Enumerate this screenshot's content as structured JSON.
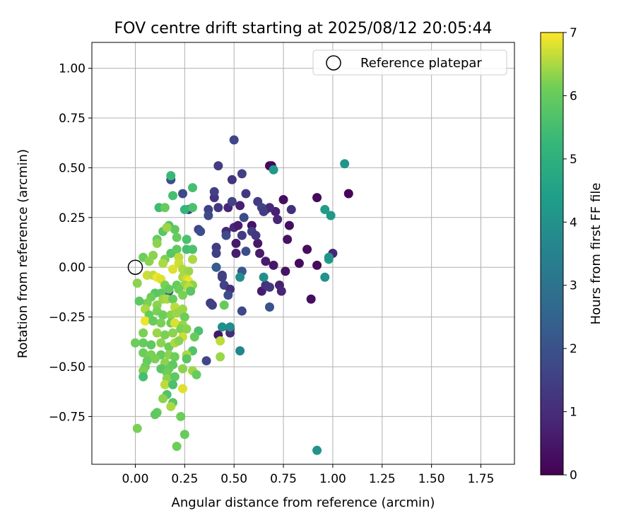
{
  "chart_data": {
    "type": "scatter",
    "title": "FOV centre drift starting at 2025/08/12 20:05:44",
    "xlabel": "Angular distance from reference (arcmin)",
    "ylabel": "Rotation from reference (arcmin)",
    "xlim": [
      -0.22,
      1.92
    ],
    "ylim": [
      -0.99,
      1.13
    ],
    "xticks": [
      0.0,
      0.25,
      0.5,
      0.75,
      1.0,
      1.25,
      1.5,
      1.75
    ],
    "xtick_labels": [
      "0.00",
      "0.25",
      "0.50",
      "0.75",
      "1.00",
      "1.25",
      "1.50",
      "1.75"
    ],
    "yticks": [
      1.0,
      0.75,
      0.5,
      0.25,
      0.0,
      -0.25,
      -0.5,
      -0.75
    ],
    "ytick_labels": [
      "1.00",
      "0.75",
      "0.50",
      "0.25",
      "0.00",
      "−0.25",
      "−0.50",
      "−0.75"
    ],
    "grid": true,
    "legend": {
      "placement": "top-right",
      "entries": [
        "Reference platepar"
      ]
    },
    "colormap": "viridis",
    "colorbar": {
      "label": "Hours from first FF file",
      "min": 0,
      "max": 7,
      "ticks": [
        0,
        1,
        2,
        3,
        4,
        5,
        6,
        7
      ],
      "tick_labels": [
        "0",
        "1",
        "2",
        "3",
        "4",
        "5",
        "6",
        "7"
      ]
    },
    "reference_point": {
      "x": 0.0,
      "y": 0.0
    },
    "points": [
      {
        "x": 0.69,
        "y": 0.51,
        "h": 0.1
      },
      {
        "x": 0.68,
        "y": 0.51,
        "h": 0.2
      },
      {
        "x": 0.92,
        "y": 0.35,
        "h": 0.2
      },
      {
        "x": 1.08,
        "y": 0.37,
        "h": 0.1
      },
      {
        "x": 0.75,
        "y": 0.34,
        "h": 0.3
      },
      {
        "x": 0.59,
        "y": 0.21,
        "h": 0.4
      },
      {
        "x": 0.78,
        "y": 0.21,
        "h": 0.3
      },
      {
        "x": 0.77,
        "y": 0.14,
        "h": 0.4
      },
      {
        "x": 0.87,
        "y": 0.09,
        "h": 0.3
      },
      {
        "x": 0.62,
        "y": 0.12,
        "h": 0.5
      },
      {
        "x": 0.63,
        "y": 0.07,
        "h": 0.6
      },
      {
        "x": 0.66,
        "y": 0.03,
        "h": 0.6
      },
      {
        "x": 0.7,
        "y": 0.01,
        "h": 0.5
      },
      {
        "x": 0.76,
        "y": -0.02,
        "h": 0.4
      },
      {
        "x": 0.83,
        "y": 0.02,
        "h": 0.2
      },
      {
        "x": 0.92,
        "y": 0.01,
        "h": 0.2
      },
      {
        "x": 0.89,
        "y": -0.16,
        "h": 0.3
      },
      {
        "x": 0.73,
        "y": -0.09,
        "h": 0.7
      },
      {
        "x": 0.74,
        "y": -0.12,
        "h": 0.8
      },
      {
        "x": 0.64,
        "y": -0.12,
        "h": 0.6
      },
      {
        "x": 1.0,
        "y": 0.07,
        "h": 0.8
      },
      {
        "x": 0.66,
        "y": 0.29,
        "h": 0.8
      },
      {
        "x": 0.71,
        "y": 0.28,
        "h": 0.7
      },
      {
        "x": 0.72,
        "y": 0.24,
        "h": 0.8
      },
      {
        "x": 0.68,
        "y": 0.3,
        "h": 0.9
      },
      {
        "x": 0.79,
        "y": 0.29,
        "h": 1.1
      },
      {
        "x": 0.5,
        "y": 0.2,
        "h": 0.9
      },
      {
        "x": 0.52,
        "y": 0.21,
        "h": 0.6
      },
      {
        "x": 0.46,
        "y": 0.18,
        "h": 0.9
      },
      {
        "x": 0.47,
        "y": 0.3,
        "h": 0.8
      },
      {
        "x": 0.53,
        "y": 0.31,
        "h": 0.7
      },
      {
        "x": 0.51,
        "y": 0.12,
        "h": 0.5
      },
      {
        "x": 0.51,
        "y": 0.07,
        "h": 0.6
      },
      {
        "x": 0.42,
        "y": -0.34,
        "h": 0.5
      },
      {
        "x": 0.48,
        "y": -0.31,
        "h": 0.8
      },
      {
        "x": 0.48,
        "y": -0.33,
        "h": 1.0
      },
      {
        "x": 0.5,
        "y": 0.64,
        "h": 1.7
      },
      {
        "x": 0.42,
        "y": 0.51,
        "h": 1.4
      },
      {
        "x": 0.49,
        "y": 0.44,
        "h": 1.2
      },
      {
        "x": 0.54,
        "y": 0.47,
        "h": 1.5
      },
      {
        "x": 0.56,
        "y": 0.37,
        "h": 1.3
      },
      {
        "x": 0.4,
        "y": 0.35,
        "h": 1.2
      },
      {
        "x": 0.4,
        "y": 0.38,
        "h": 1.5
      },
      {
        "x": 0.62,
        "y": 0.33,
        "h": 1.4
      },
      {
        "x": 0.64,
        "y": 0.3,
        "h": 1.6
      },
      {
        "x": 0.65,
        "y": 0.28,
        "h": 1.4
      },
      {
        "x": 0.55,
        "y": 0.25,
        "h": 1.8
      },
      {
        "x": 0.32,
        "y": 0.19,
        "h": 1.6
      },
      {
        "x": 0.37,
        "y": 0.29,
        "h": 1.5
      },
      {
        "x": 0.37,
        "y": 0.26,
        "h": 1.8
      },
      {
        "x": 0.42,
        "y": 0.3,
        "h": 1.3
      },
      {
        "x": 0.49,
        "y": 0.33,
        "h": 1.6
      },
      {
        "x": 0.59,
        "y": 0.18,
        "h": 1.5
      },
      {
        "x": 0.61,
        "y": 0.16,
        "h": 1.3
      },
      {
        "x": 0.54,
        "y": 0.16,
        "h": 1.4
      },
      {
        "x": 0.46,
        "y": 0.16,
        "h": 1.8
      },
      {
        "x": 0.33,
        "y": 0.18,
        "h": 1.9
      },
      {
        "x": 0.41,
        "y": 0.1,
        "h": 1.4
      },
      {
        "x": 0.41,
        "y": 0.07,
        "h": 1.5
      },
      {
        "x": 0.56,
        "y": 0.08,
        "h": 1.9
      },
      {
        "x": 0.41,
        "y": 0.0,
        "h": 2.1
      },
      {
        "x": 0.44,
        "y": -0.04,
        "h": 1.4
      },
      {
        "x": 0.44,
        "y": -0.05,
        "h": 1.5
      },
      {
        "x": 0.45,
        "y": -0.09,
        "h": 1.6
      },
      {
        "x": 0.48,
        "y": -0.11,
        "h": 1.1
      },
      {
        "x": 0.47,
        "y": -0.14,
        "h": 1.8
      },
      {
        "x": 0.38,
        "y": -0.18,
        "h": 1.4
      },
      {
        "x": 0.39,
        "y": -0.19,
        "h": 1.5
      },
      {
        "x": 0.54,
        "y": -0.22,
        "h": 1.7
      },
      {
        "x": 0.66,
        "y": -0.09,
        "h": 1.2
      },
      {
        "x": 0.68,
        "y": -0.1,
        "h": 1.3
      },
      {
        "x": 0.68,
        "y": -0.2,
        "h": 2.0
      },
      {
        "x": 0.36,
        "y": -0.47,
        "h": 1.7
      },
      {
        "x": 0.18,
        "y": 0.44,
        "h": 1.9
      },
      {
        "x": 0.24,
        "y": 0.37,
        "h": 1.8
      },
      {
        "x": 0.27,
        "y": 0.29,
        "h": 1.6
      },
      {
        "x": 0.17,
        "y": -0.12,
        "h": 1.9
      },
      {
        "x": 0.41,
        "y": 0.0,
        "h": 2.3
      },
      {
        "x": 0.54,
        "y": -0.02,
        "h": 2.2
      },
      {
        "x": 0.7,
        "y": 0.49,
        "h": 4.2
      },
      {
        "x": 1.06,
        "y": 0.52,
        "h": 4.1
      },
      {
        "x": 0.96,
        "y": 0.29,
        "h": 4.3
      },
      {
        "x": 0.99,
        "y": 0.26,
        "h": 4.2
      },
      {
        "x": 0.98,
        "y": 0.04,
        "h": 4.4
      },
      {
        "x": 0.98,
        "y": 0.05,
        "h": 4.1
      },
      {
        "x": 0.96,
        "y": -0.05,
        "h": 4.0
      },
      {
        "x": 0.65,
        "y": -0.05,
        "h": 3.9
      },
      {
        "x": 0.53,
        "y": -0.05,
        "h": 3.8
      },
      {
        "x": 0.44,
        "y": -0.3,
        "h": 3.9
      },
      {
        "x": 0.48,
        "y": -0.3,
        "h": 3.8
      },
      {
        "x": 0.53,
        "y": -0.42,
        "h": 3.6
      },
      {
        "x": 0.92,
        "y": -0.92,
        "h": 4.0
      },
      {
        "x": 0.25,
        "y": 0.29,
        "h": 5.2
      },
      {
        "x": 0.29,
        "y": 0.4,
        "h": 5.5
      },
      {
        "x": 0.18,
        "y": 0.46,
        "h": 5.3
      },
      {
        "x": 0.19,
        "y": 0.36,
        "h": 5.5
      },
      {
        "x": 0.12,
        "y": 0.3,
        "h": 5.4
      },
      {
        "x": 0.29,
        "y": 0.3,
        "h": 5.6
      },
      {
        "x": 0.15,
        "y": 0.3,
        "h": 6.0
      },
      {
        "x": 0.17,
        "y": 0.21,
        "h": 5.7
      },
      {
        "x": 0.14,
        "y": 0.18,
        "h": 5.8
      },
      {
        "x": 0.2,
        "y": 0.19,
        "h": 5.9
      },
      {
        "x": 0.16,
        "y": 0.2,
        "h": 6.4
      },
      {
        "x": 0.21,
        "y": 0.15,
        "h": 6.0
      },
      {
        "x": 0.26,
        "y": 0.14,
        "h": 5.6
      },
      {
        "x": 0.11,
        "y": 0.14,
        "h": 6.0
      },
      {
        "x": 0.11,
        "y": 0.12,
        "h": 6.3
      },
      {
        "x": 0.04,
        "y": 0.05,
        "h": 6.1
      },
      {
        "x": 0.09,
        "y": 0.06,
        "h": 6.3
      },
      {
        "x": 0.18,
        "y": 0.07,
        "h": 5.8
      },
      {
        "x": 0.21,
        "y": 0.09,
        "h": 5.9
      },
      {
        "x": 0.26,
        "y": 0.09,
        "h": 5.5
      },
      {
        "x": 0.29,
        "y": 0.09,
        "h": 5.6
      },
      {
        "x": 0.22,
        "y": 0.05,
        "h": 6.6
      },
      {
        "x": 0.29,
        "y": 0.04,
        "h": 6.5
      },
      {
        "x": 0.15,
        "y": 0.04,
        "h": 6.2
      },
      {
        "x": 0.07,
        "y": 0.03,
        "h": 6.3
      },
      {
        "x": 0.14,
        "y": 0.02,
        "h": 6.5
      },
      {
        "x": 0.22,
        "y": 0.02,
        "h": 6.7
      },
      {
        "x": 0.19,
        "y": -0.01,
        "h": 6.8
      },
      {
        "x": 0.24,
        "y": -0.01,
        "h": 6.5
      },
      {
        "x": 0.27,
        "y": -0.02,
        "h": 6.4
      },
      {
        "x": 0.06,
        "y": -0.04,
        "h": 6.7
      },
      {
        "x": 0.09,
        "y": -0.04,
        "h": 6.6
      },
      {
        "x": 0.11,
        "y": -0.05,
        "h": 6.9
      },
      {
        "x": 0.13,
        "y": -0.06,
        "h": 6.8
      },
      {
        "x": 0.24,
        "y": -0.05,
        "h": 6.5
      },
      {
        "x": 0.26,
        "y": -0.06,
        "h": 6.7
      },
      {
        "x": 0.27,
        "y": -0.07,
        "h": 6.9
      },
      {
        "x": 0.01,
        "y": -0.08,
        "h": 6.3
      },
      {
        "x": 0.15,
        "y": -0.09,
        "h": 6.2
      },
      {
        "x": 0.21,
        "y": -0.09,
        "h": 6.0
      },
      {
        "x": 0.25,
        "y": -0.09,
        "h": 6.4
      },
      {
        "x": 0.29,
        "y": -0.09,
        "h": 6.3
      },
      {
        "x": 0.27,
        "y": -0.1,
        "h": 6.6
      },
      {
        "x": 0.22,
        "y": -0.11,
        "h": 6.1
      },
      {
        "x": 0.17,
        "y": -0.11,
        "h": 6.0
      },
      {
        "x": 0.13,
        "y": -0.13,
        "h": 5.9
      },
      {
        "x": 0.1,
        "y": -0.13,
        "h": 5.8
      },
      {
        "x": 0.28,
        "y": -0.12,
        "h": 5.8
      },
      {
        "x": 0.24,
        "y": -0.14,
        "h": 6.2
      },
      {
        "x": 0.08,
        "y": -0.15,
        "h": 6.1
      },
      {
        "x": 0.14,
        "y": -0.16,
        "h": 6.4
      },
      {
        "x": 0.16,
        "y": -0.16,
        "h": 6.5
      },
      {
        "x": 0.19,
        "y": -0.16,
        "h": 6.0
      },
      {
        "x": 0.06,
        "y": -0.18,
        "h": 6.2
      },
      {
        "x": 0.02,
        "y": -0.17,
        "h": 5.9
      },
      {
        "x": 0.45,
        "y": -0.19,
        "h": 6.0
      },
      {
        "x": 0.11,
        "y": -0.19,
        "h": 6.3
      },
      {
        "x": 0.2,
        "y": -0.2,
        "h": 6.6
      },
      {
        "x": 0.24,
        "y": -0.21,
        "h": 6.4
      },
      {
        "x": 0.05,
        "y": -0.21,
        "h": 6.5
      },
      {
        "x": 0.07,
        "y": -0.24,
        "h": 6.0
      },
      {
        "x": 0.11,
        "y": -0.22,
        "h": 6.2
      },
      {
        "x": 0.14,
        "y": -0.24,
        "h": 6.1
      },
      {
        "x": 0.18,
        "y": -0.24,
        "h": 6.3
      },
      {
        "x": 0.21,
        "y": -0.23,
        "h": 6.4
      },
      {
        "x": 0.25,
        "y": -0.25,
        "h": 6.1
      },
      {
        "x": 0.05,
        "y": -0.27,
        "h": 6.9
      },
      {
        "x": 0.09,
        "y": -0.27,
        "h": 6.0
      },
      {
        "x": 0.13,
        "y": -0.28,
        "h": 6.2
      },
      {
        "x": 0.18,
        "y": -0.28,
        "h": 6.1
      },
      {
        "x": 0.2,
        "y": -0.28,
        "h": 6.8
      },
      {
        "x": 0.24,
        "y": -0.29,
        "h": 6.4
      },
      {
        "x": 0.23,
        "y": -0.31,
        "h": 6.2
      },
      {
        "x": 0.26,
        "y": -0.31,
        "h": 6.3
      },
      {
        "x": 0.32,
        "y": -0.32,
        "h": 5.6
      },
      {
        "x": 0.04,
        "y": -0.33,
        "h": 6.2
      },
      {
        "x": 0.11,
        "y": -0.33,
        "h": 6.4
      },
      {
        "x": 0.15,
        "y": -0.34,
        "h": 6.2
      },
      {
        "x": 0.19,
        "y": -0.33,
        "h": 6.3
      },
      {
        "x": 0.24,
        "y": -0.35,
        "h": 6.7
      },
      {
        "x": 0.3,
        "y": -0.35,
        "h": 6.0
      },
      {
        "x": 0.43,
        "y": -0.37,
        "h": 6.6
      },
      {
        "x": 0.0,
        "y": -0.38,
        "h": 6.1
      },
      {
        "x": 0.04,
        "y": -0.38,
        "h": 6.0
      },
      {
        "x": 0.08,
        "y": -0.39,
        "h": 5.9
      },
      {
        "x": 0.13,
        "y": -0.38,
        "h": 6.3
      },
      {
        "x": 0.17,
        "y": -0.4,
        "h": 6.1
      },
      {
        "x": 0.2,
        "y": -0.38,
        "h": 6.5
      },
      {
        "x": 0.22,
        "y": -0.37,
        "h": 6.3
      },
      {
        "x": 0.29,
        "y": -0.42,
        "h": 5.7
      },
      {
        "x": 0.04,
        "y": -0.43,
        "h": 6.1
      },
      {
        "x": 0.08,
        "y": -0.44,
        "h": 6.2
      },
      {
        "x": 0.13,
        "y": -0.44,
        "h": 6.0
      },
      {
        "x": 0.17,
        "y": -0.44,
        "h": 6.3
      },
      {
        "x": 0.2,
        "y": -0.45,
        "h": 6.1
      },
      {
        "x": 0.26,
        "y": -0.44,
        "h": 6.5
      },
      {
        "x": 0.26,
        "y": -0.46,
        "h": 5.8
      },
      {
        "x": 0.43,
        "y": -0.45,
        "h": 6.4
      },
      {
        "x": 0.06,
        "y": -0.47,
        "h": 6.0
      },
      {
        "x": 0.1,
        "y": -0.46,
        "h": 6.2
      },
      {
        "x": 0.15,
        "y": -0.48,
        "h": 6.3
      },
      {
        "x": 0.19,
        "y": -0.49,
        "h": 5.9
      },
      {
        "x": 0.05,
        "y": -0.5,
        "h": 6.1
      },
      {
        "x": 0.13,
        "y": -0.51,
        "h": 5.8
      },
      {
        "x": 0.17,
        "y": -0.51,
        "h": 6.0
      },
      {
        "x": 0.24,
        "y": -0.51,
        "h": 6.3
      },
      {
        "x": 0.29,
        "y": -0.52,
        "h": 6.4
      },
      {
        "x": 0.04,
        "y": -0.52,
        "h": 6.2
      },
      {
        "x": 0.16,
        "y": -0.53,
        "h": 6.1
      },
      {
        "x": 0.31,
        "y": -0.54,
        "h": 6.0
      },
      {
        "x": 0.04,
        "y": -0.55,
        "h": 5.5
      },
      {
        "x": 0.16,
        "y": -0.56,
        "h": 6.3
      },
      {
        "x": 0.2,
        "y": -0.55,
        "h": 5.9
      },
      {
        "x": 0.15,
        "y": -0.59,
        "h": 6.6
      },
      {
        "x": 0.19,
        "y": -0.59,
        "h": 5.6
      },
      {
        "x": 0.24,
        "y": -0.61,
        "h": 6.8
      },
      {
        "x": 0.16,
        "y": -0.64,
        "h": 5.7
      },
      {
        "x": 0.14,
        "y": -0.66,
        "h": 6.3
      },
      {
        "x": 0.19,
        "y": -0.68,
        "h": 5.8
      },
      {
        "x": 0.18,
        "y": -0.7,
        "h": 6.5
      },
      {
        "x": 0.11,
        "y": -0.73,
        "h": 6.0
      },
      {
        "x": 0.1,
        "y": -0.74,
        "h": 5.9
      },
      {
        "x": 0.23,
        "y": -0.75,
        "h": 6.1
      },
      {
        "x": 0.01,
        "y": -0.81,
        "h": 6.2
      },
      {
        "x": 0.25,
        "y": -0.84,
        "h": 6.0
      },
      {
        "x": 0.21,
        "y": -0.9,
        "h": 6.1
      }
    ]
  }
}
